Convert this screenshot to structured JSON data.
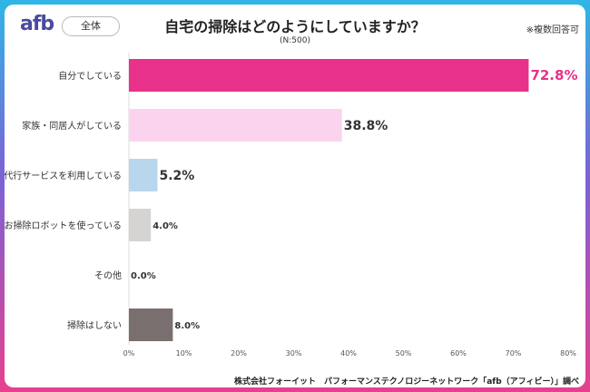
{
  "header": {
    "logo": "afb",
    "scope": "全体",
    "title": "自宅の掃除はどのようにしていますか？",
    "sample": "(N:500)",
    "note": "※複数回答可"
  },
  "footer": {
    "source": "株式会社フォーイット　パフォーマンステクノロジーネットワーク「afb（アフィビー）」調べ"
  },
  "chart_data": {
    "type": "bar",
    "orientation": "horizontal",
    "categories": [
      "自分でしている",
      "家族・同居人がしている",
      "代行サービスを利用している",
      "お掃除ロボットを使っている",
      "その他",
      "掃除はしない"
    ],
    "values": [
      72.8,
      38.8,
      5.2,
      4.0,
      0.0,
      8.0
    ],
    "value_labels": [
      "72.8%",
      "38.8%",
      "5.2%",
      "4.0%",
      "0.0%",
      "8.0%"
    ],
    "bar_colors": [
      "#e8318a",
      "#fbd3ef",
      "#b9d7ec",
      "#d6d3d3",
      "#cccccc",
      "#7a6f6f"
    ],
    "label_colors": [
      "#e8318a",
      "#333333",
      "#333333",
      "#333333",
      "#333333",
      "#333333"
    ],
    "xlim": [
      0,
      80
    ],
    "xticks": [
      0,
      10,
      20,
      30,
      40,
      50,
      60,
      70,
      80
    ],
    "xtick_labels": [
      "0%",
      "10%",
      "20%",
      "30%",
      "40%",
      "50%",
      "60%",
      "70%",
      "80%"
    ],
    "grid": false
  }
}
